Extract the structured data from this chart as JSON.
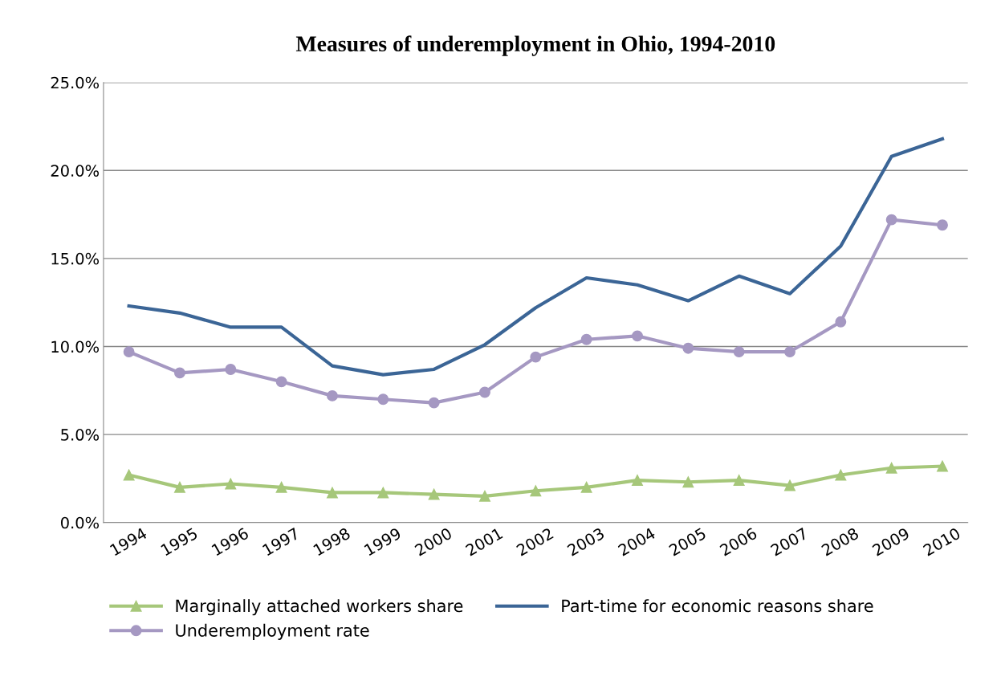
{
  "chart_data": {
    "type": "line",
    "title": "Measures of underemployment in Ohio, 1994-2010",
    "categories": [
      "1994",
      "1995",
      "1996",
      "1997",
      "1998",
      "1999",
      "2000",
      "2001",
      "2002",
      "2003",
      "2004",
      "2005",
      "2006",
      "2007",
      "2008",
      "2009",
      "2010"
    ],
    "series": [
      {
        "name": "Marginally attached workers share",
        "color": "#a6c77a",
        "marker": "triangle",
        "values": [
          2.7,
          2.0,
          2.2,
          2.0,
          1.7,
          1.7,
          1.6,
          1.5,
          1.8,
          2.0,
          2.4,
          2.3,
          2.4,
          2.1,
          2.7,
          3.1,
          3.2
        ]
      },
      {
        "name": "Underemployment rate",
        "color": "#a598c2",
        "marker": "circle",
        "values": [
          9.7,
          8.5,
          8.7,
          8.0,
          7.2,
          7.0,
          6.8,
          7.4,
          9.4,
          10.4,
          10.6,
          9.9,
          9.7,
          9.7,
          11.4,
          17.2,
          16.9
        ]
      },
      {
        "name": "Part-time for economic reasons share",
        "color": "#3b6596",
        "marker": "none",
        "values": [
          12.3,
          11.9,
          11.1,
          11.1,
          8.9,
          8.4,
          8.7,
          10.1,
          12.2,
          13.9,
          13.5,
          12.6,
          14.0,
          13.0,
          15.7,
          20.8,
          21.8
        ]
      }
    ],
    "ylim": [
      0,
      25
    ],
    "yticks": [
      {
        "value": 0,
        "label": "0.0%"
      },
      {
        "value": 5,
        "label": "5.0%"
      },
      {
        "value": 10,
        "label": "10.0%"
      },
      {
        "value": 15,
        "label": "15.0%"
      },
      {
        "value": 20,
        "label": "20.0%"
      },
      {
        "value": 25,
        "label": "25.0%"
      }
    ],
    "grid": "y",
    "legend": "bottom",
    "line_style": "solid"
  }
}
